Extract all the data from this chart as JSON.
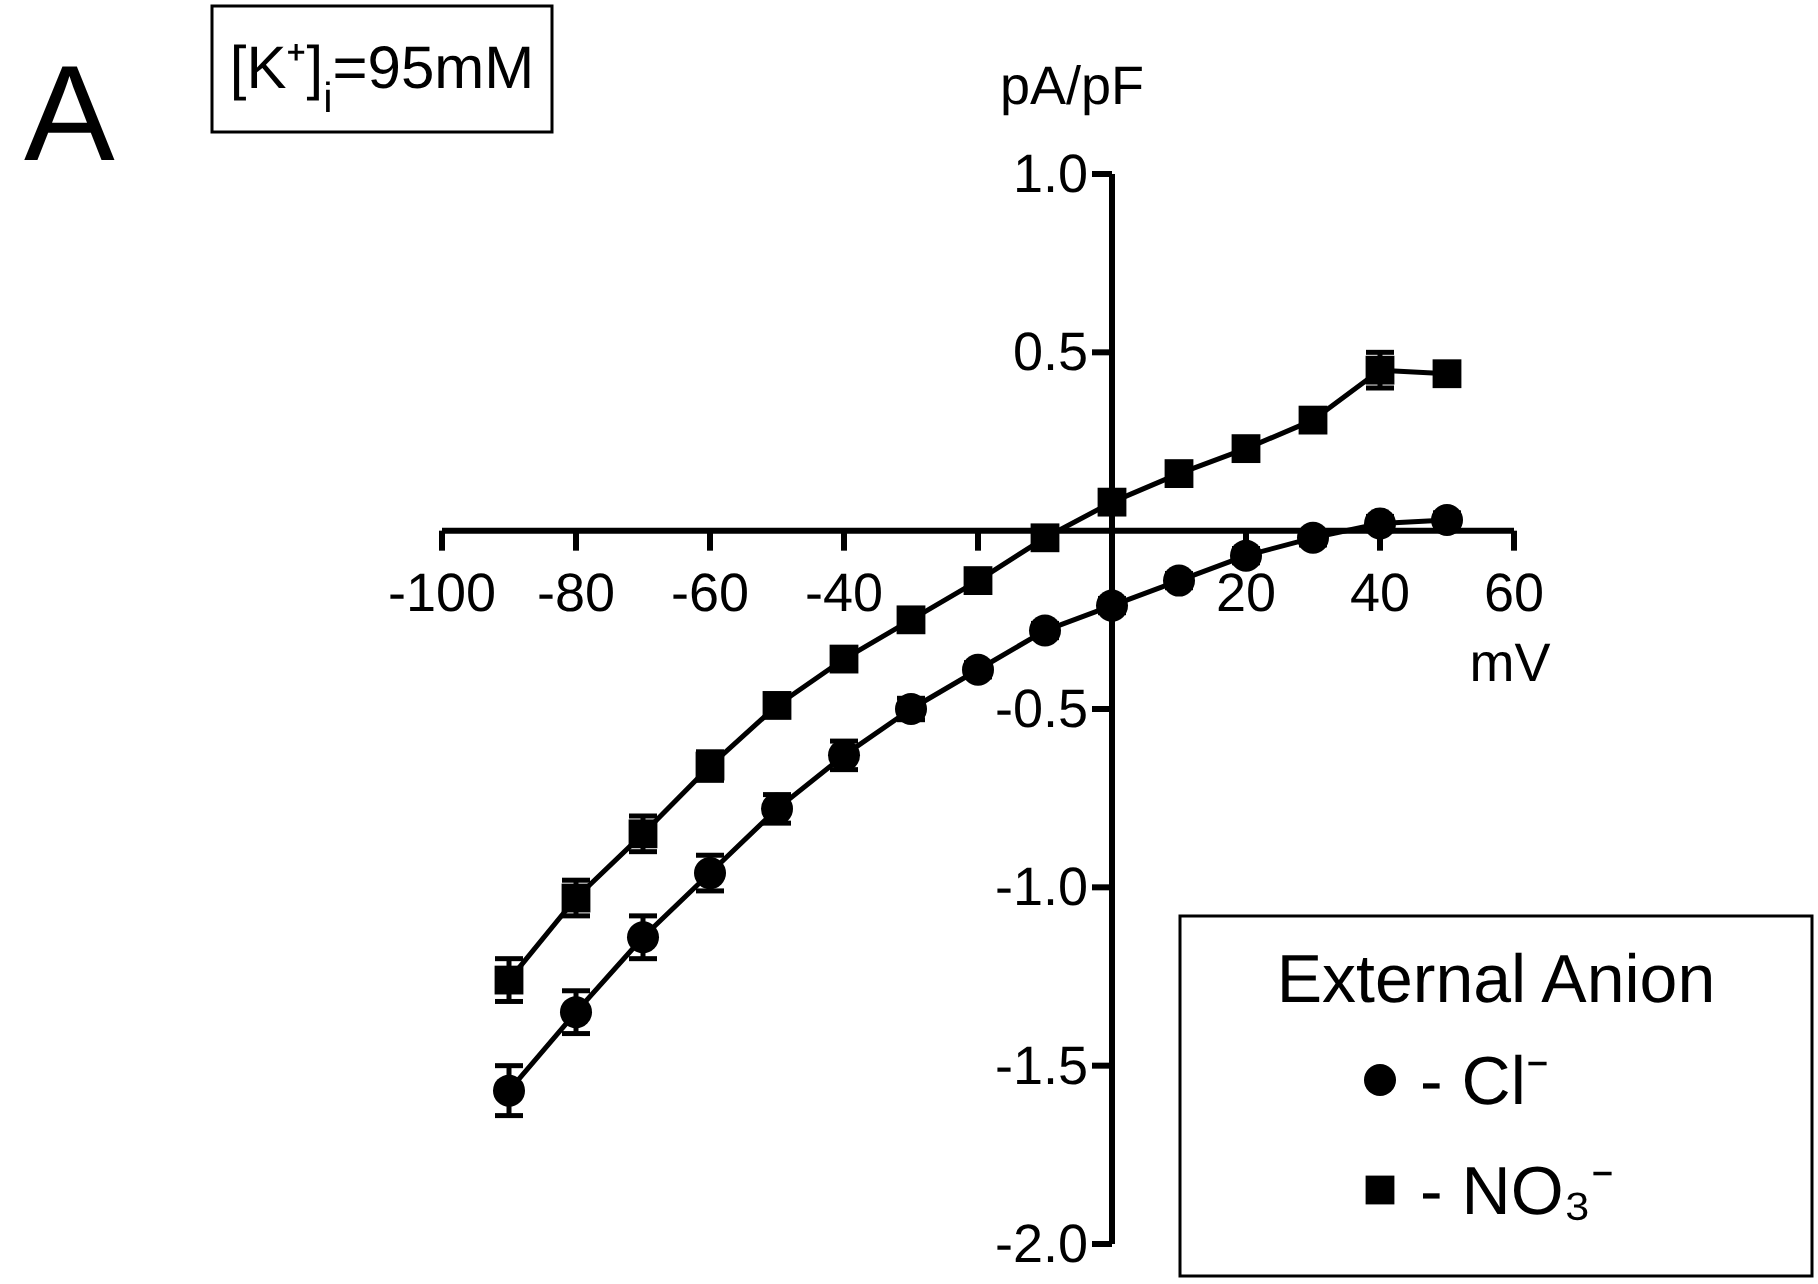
{
  "chart_data": {
    "type": "line",
    "title": "[K⁺]$_{i}$=95mM",
    "xlabel": "mV",
    "ylabel": "pA/pF",
    "legend_title": "External Anion",
    "legend": "bottom right",
    "annotations": [
      "A"
    ],
    "x": [
      -90,
      -80,
      -70,
      -60,
      -50,
      -40,
      -30,
      -20,
      -10,
      0,
      10,
      20,
      30,
      40,
      50
    ],
    "xlim": [
      -100,
      60
    ],
    "xticks": [
      -100,
      -80,
      -60,
      -40,
      {
        "value": -20,
        "label": null
      },
      20,
      40,
      60
    ],
    "ylim": [
      -2,
      1
    ],
    "yticks": [
      {
        "value": -2,
        "label": "-2.0"
      },
      {
        "value": -1.5,
        "label": "-1.5"
      },
      {
        "value": -1,
        "label": "-1.0"
      },
      {
        "value": -0.5,
        "label": "-0.5"
      },
      {
        "value": 0.5,
        "label": "0.5"
      },
      {
        "value": 1,
        "label": "1.0"
      }
    ],
    "grid": false,
    "line_style": "solid",
    "series": [
      {
        "name": "- Cl⁻",
        "color": "#000000",
        "marker": "circle",
        "values": [
          -1.57,
          -1.35,
          -1.14,
          -0.96,
          -0.78,
          -0.63,
          -0.5,
          -0.39,
          -0.28,
          -0.21,
          -0.14,
          -0.07,
          -0.02,
          0.02,
          0.03
        ],
        "errors": [
          0.07,
          0.06,
          0.06,
          0.05,
          0.04,
          0.04,
          0.03,
          0.02,
          0.02,
          0.02,
          0.02,
          0.02,
          0.02,
          0.02,
          0.02
        ]
      },
      {
        "name": "- NO₃⁻",
        "color": "#000000",
        "marker": "square",
        "values": [
          -1.26,
          -1.03,
          -0.85,
          -0.66,
          -0.49,
          -0.36,
          -0.25,
          -0.14,
          -0.02,
          0.08,
          0.16,
          0.23,
          0.31,
          0.45,
          0.44
        ],
        "errors": [
          0.06,
          0.05,
          0.05,
          0.04,
          0.03,
          0.03,
          0.02,
          0.02,
          0.02,
          0.02,
          0.03,
          0.03,
          0.03,
          0.05,
          0.03
        ]
      }
    ]
  }
}
